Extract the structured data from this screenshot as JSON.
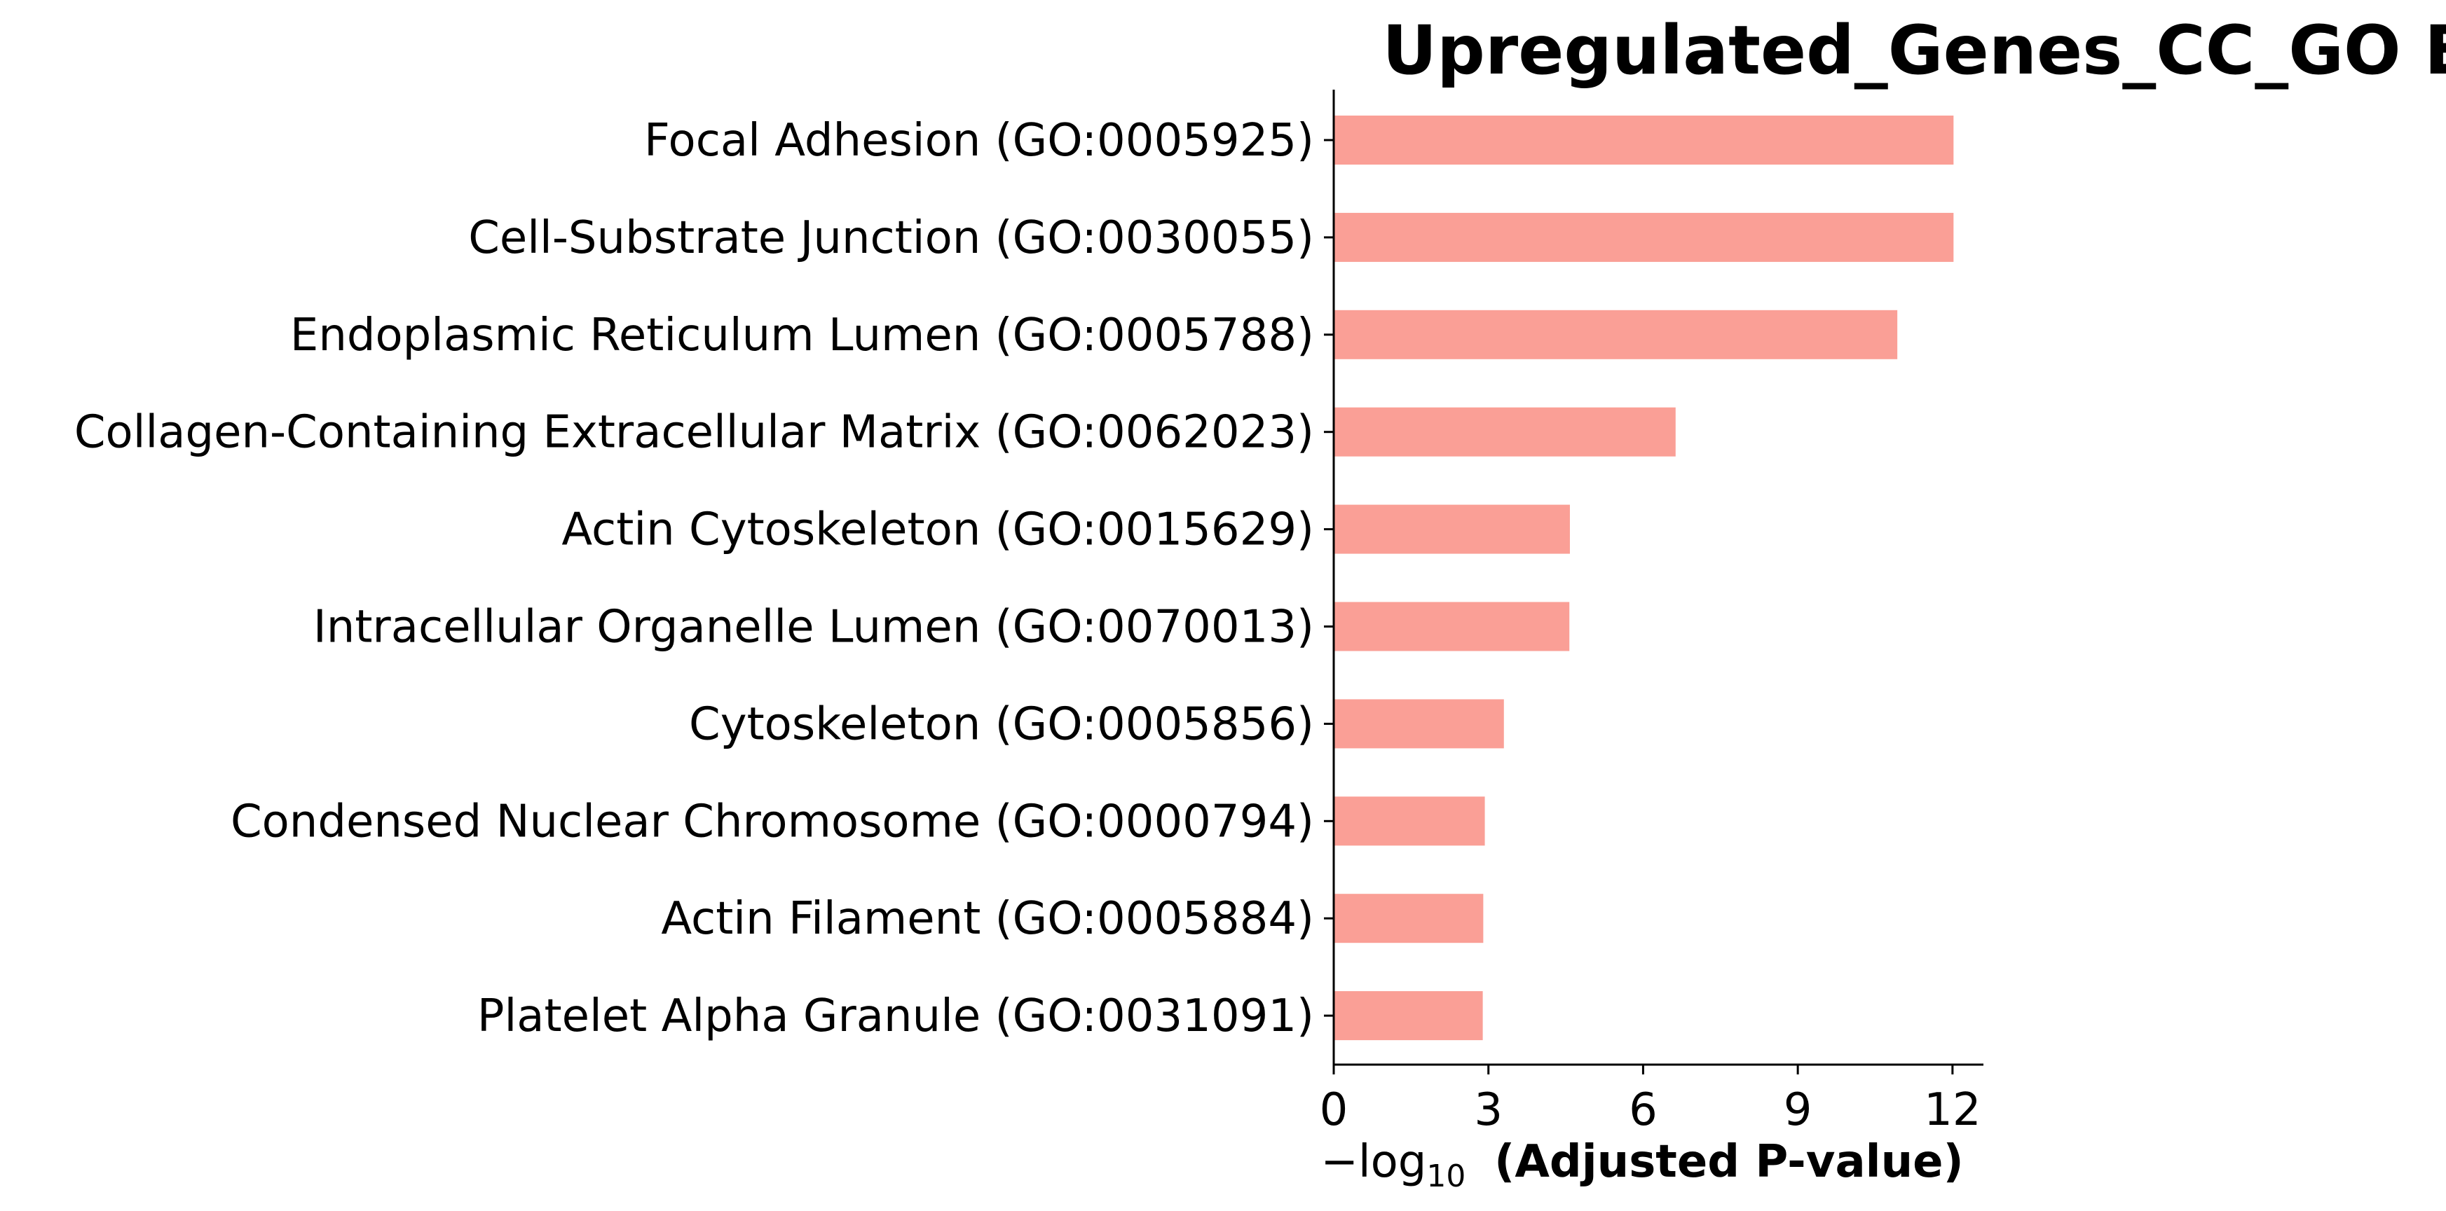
{
  "chart_data": {
    "type": "bar",
    "orientation": "horizontal",
    "title": "Upregulated_Genes_CC_GO Enrichment",
    "xlabel": {
      "prefix": "−log",
      "subscript": "10",
      "suffix": "(Adjusted P-value)"
    },
    "ylabel": "",
    "categories": [
      "Focal Adhesion (GO:0005925)",
      "Cell-Substrate Junction (GO:0030055)",
      "Endoplasmic Reticulum Lumen (GO:0005788)",
      "Collagen-Containing Extracellular Matrix (GO:0062023)",
      "Actin Cytoskeleton (GO:0015629)",
      "Intracellular Organelle Lumen (GO:0070013)",
      "Cytoskeleton (GO:0005856)",
      "Condensed Nuclear Chromosome (GO:0000794)",
      "Actin Filament (GO:0005884)",
      "Platelet Alpha Granule (GO:0031091)"
    ],
    "values": [
      12.02,
      12.02,
      10.93,
      6.63,
      4.58,
      4.57,
      3.3,
      2.93,
      2.9,
      2.89
    ],
    "xlim": [
      0,
      12.6
    ],
    "xticks": [
      0,
      3,
      6,
      9,
      12
    ],
    "bar_color": "#fa9f96",
    "grid": false,
    "legend": "none"
  }
}
